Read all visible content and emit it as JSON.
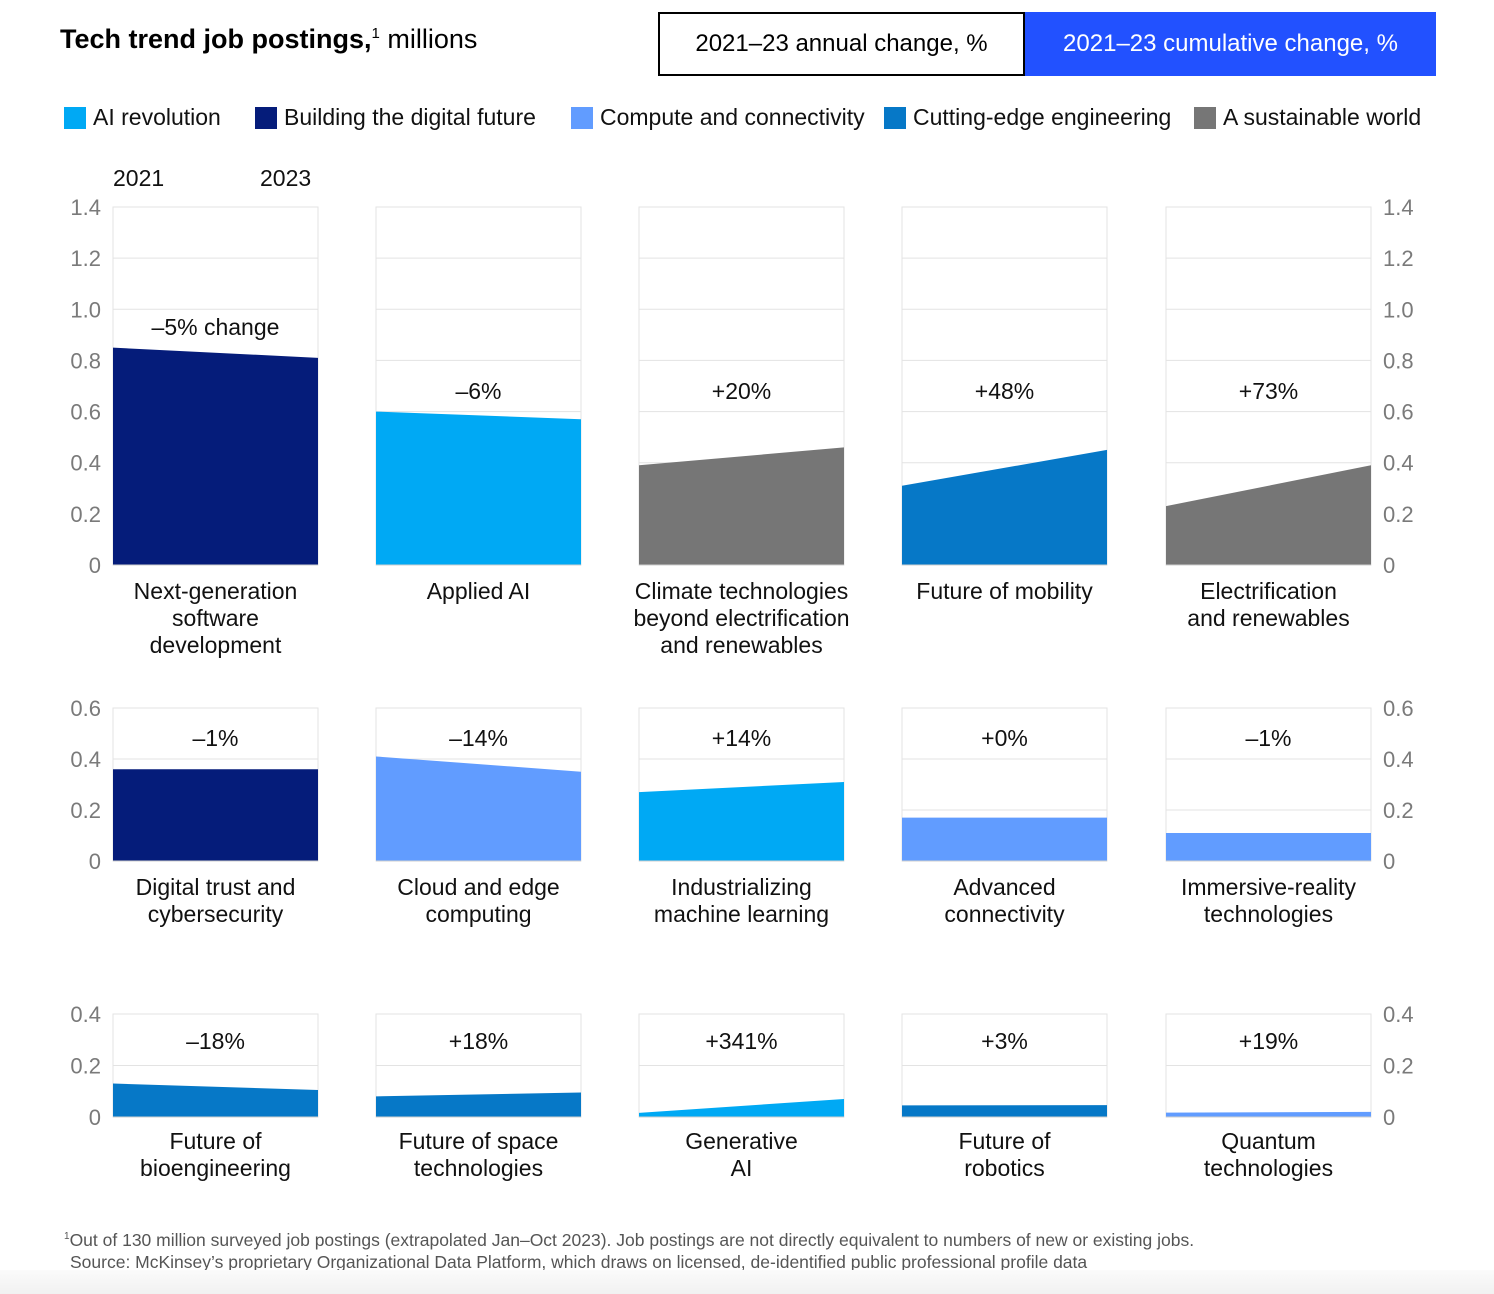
{
  "title": {
    "bold": "Tech trend job postings,",
    "sup": "1",
    "unit": " millions"
  },
  "toggle": {
    "annual_label": "2021–23 annual change, %",
    "cumulative_label": "2021–23 cumulative change, %"
  },
  "legend": [
    {
      "label": "AI revolution",
      "color": "#00a9f4"
    },
    {
      "label": "Building the digital future",
      "color": "#051c7a"
    },
    {
      "label": "Compute and connectivity",
      "color": "#619cff"
    },
    {
      "label": "Cutting-edge engineering",
      "color": "#0678c7"
    },
    {
      "label": "A sustainable world",
      "color": "#767676"
    }
  ],
  "year_labels": {
    "start": "2021",
    "end": "2023"
  },
  "colors": {
    "AI revolution": "#00a9f4",
    "Building the digital future": "#051c7a",
    "Compute and connectivity": "#619cff",
    "Cutting-edge engineering": "#0678c7",
    "A sustainable world": "#767676",
    "gridline": "#e3e3e3",
    "axis_text": "#7a7a7a"
  },
  "chart_data": [
    {
      "type": "area",
      "x": [
        "2021",
        "2023"
      ],
      "ylim": [
        0,
        1.4
      ],
      "yticks": [
        "0",
        "0.2",
        "0.4",
        "0.6",
        "0.8",
        "1.0",
        "1.2",
        "1.4"
      ],
      "series": [
        {
          "name": "Next-generation software development",
          "category": "Building the digital future",
          "values": [
            0.85,
            0.81
          ],
          "change": "–5% change"
        },
        {
          "name": "Applied AI",
          "category": "AI revolution",
          "values": [
            0.6,
            0.57
          ],
          "change": "–6%"
        },
        {
          "name": "Climate technologies beyond electrification and renewables",
          "category": "A sustainable world",
          "values": [
            0.39,
            0.46
          ],
          "change": "+20%"
        },
        {
          "name": "Future of mobility",
          "category": "Cutting-edge engineering",
          "values": [
            0.31,
            0.45
          ],
          "change": "+48%"
        },
        {
          "name": "Electrification and renewables",
          "category": "A sustainable world",
          "values": [
            0.23,
            0.39
          ],
          "change": "+73%"
        }
      ]
    },
    {
      "type": "area",
      "x": [
        "2021",
        "2023"
      ],
      "ylim": [
        0,
        0.6
      ],
      "yticks": [
        "0",
        "0.2",
        "0.4",
        "0.6"
      ],
      "series": [
        {
          "name": "Digital trust and cybersecurity",
          "category": "Building the digital future",
          "values": [
            0.36,
            0.36
          ],
          "change": "–1%"
        },
        {
          "name": "Cloud and edge computing",
          "category": "Compute and connectivity",
          "values": [
            0.41,
            0.35
          ],
          "change": "–14%"
        },
        {
          "name": "Industrializing machine learning",
          "category": "AI revolution",
          "values": [
            0.27,
            0.31
          ],
          "change": "+14%"
        },
        {
          "name": "Advanced connectivity",
          "category": "Compute and connectivity",
          "values": [
            0.17,
            0.17
          ],
          "change": "+0%"
        },
        {
          "name": "Immersive-reality technologies",
          "category": "Compute and connectivity",
          "values": [
            0.11,
            0.11
          ],
          "change": "–1%"
        }
      ]
    },
    {
      "type": "area",
      "x": [
        "2021",
        "2023"
      ],
      "ylim": [
        0,
        0.4
      ],
      "yticks": [
        "0",
        "0.2",
        "0.4"
      ],
      "series": [
        {
          "name": "Future of bioengineering",
          "category": "Cutting-edge engineering",
          "values": [
            0.13,
            0.105
          ],
          "change": "–18%"
        },
        {
          "name": "Future of space technologies",
          "category": "Cutting-edge engineering",
          "values": [
            0.08,
            0.095
          ],
          "change": "+18%"
        },
        {
          "name": "Generative AI",
          "category": "AI revolution",
          "values": [
            0.016,
            0.07
          ],
          "change": "+341%"
        },
        {
          "name": "Future of robotics",
          "category": "Cutting-edge engineering",
          "values": [
            0.045,
            0.046
          ],
          "change": "+3%"
        },
        {
          "name": "Quantum technologies",
          "category": "Compute and connectivity",
          "values": [
            0.017,
            0.02
          ],
          "change": "+19%"
        }
      ]
    }
  ],
  "footnote": {
    "sup": "1",
    "line1": "Out of 130 million surveyed job postings (extrapolated Jan–Oct 2023). Job postings are not directly equivalent to numbers of new or existing jobs.",
    "line2": "Source: McKinsey’s proprietary Organizational Data Platform, which draws on licensed, de-identified public professional profile data"
  }
}
